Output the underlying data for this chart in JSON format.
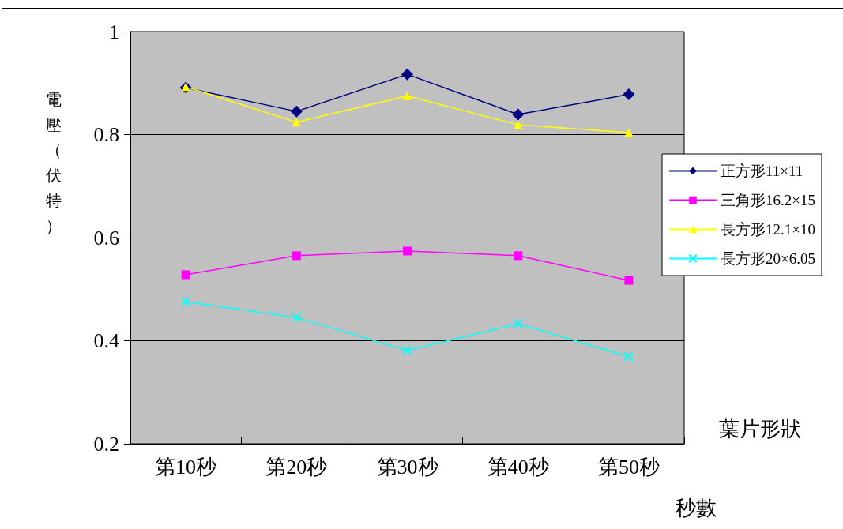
{
  "chart_data": {
    "type": "line",
    "ylabel": "電壓（伏特）",
    "xlabel": "秒數",
    "legend_title": "葉片形狀",
    "categories": [
      "第10秒",
      "第20秒",
      "第30秒",
      "第40秒",
      "第50秒"
    ],
    "series": [
      {
        "name": "正方形11×11",
        "color": "#000080",
        "marker": "diamond",
        "values": [
          0.891,
          0.845,
          0.917,
          0.839,
          0.878
        ]
      },
      {
        "name": "三角形16.2×15",
        "color": "#ff00ff",
        "marker": "square",
        "values": [
          0.528,
          0.565,
          0.574,
          0.565,
          0.517
        ]
      },
      {
        "name": "長方形12.1×10",
        "color": "#ffff00",
        "marker": "triangle",
        "values": [
          0.893,
          0.824,
          0.875,
          0.819,
          0.804
        ]
      },
      {
        "name": "長方形20×6.05",
        "color": "#00ffff",
        "marker": "cross",
        "values": [
          0.476,
          0.445,
          0.381,
          0.433,
          0.369
        ]
      }
    ],
    "ylim": [
      0.2,
      1
    ],
    "yticks": [
      0.2,
      0.4,
      0.6,
      0.8,
      1
    ],
    "grid": "y",
    "legend": "right"
  }
}
